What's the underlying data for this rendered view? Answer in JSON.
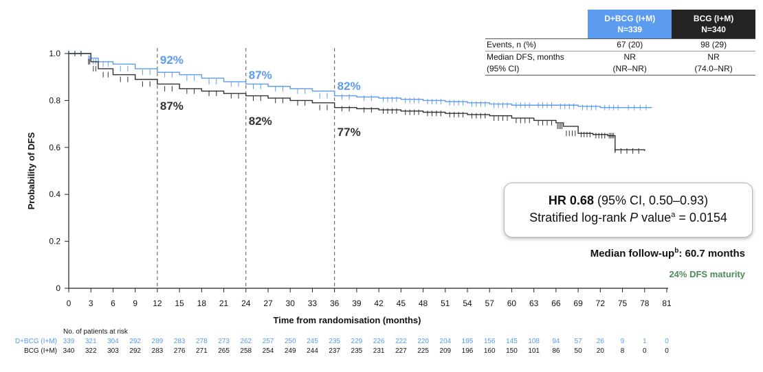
{
  "chart_data": {
    "type": "line",
    "subtype": "kaplan-meier",
    "xlabel": "Time from randomisation (months)",
    "ylabel": "Probability of DFS",
    "xlim": [
      0,
      81
    ],
    "ylim": [
      0,
      1.0
    ],
    "x_ticks": [
      0,
      3,
      6,
      9,
      12,
      15,
      18,
      21,
      24,
      27,
      30,
      33,
      36,
      39,
      42,
      45,
      48,
      51,
      54,
      57,
      60,
      63,
      66,
      69,
      72,
      75,
      78,
      81
    ],
    "y_ticks": [
      {
        "value": 0,
        "label": "0"
      },
      {
        "value": 0.2,
        "label": "0.2"
      },
      {
        "value": 0.4,
        "label": "0.4"
      },
      {
        "value": 0.6,
        "label": "0.6"
      },
      {
        "value": 0.8,
        "label": "0.8"
      },
      {
        "value": 1.0,
        "label": "1.0"
      }
    ],
    "grid": false,
    "series": [
      {
        "name": "D+BCG (I+M)",
        "color": "#5b9bf0",
        "points": [
          [
            0,
            1.0
          ],
          [
            2.5,
            1.0
          ],
          [
            3,
            0.98
          ],
          [
            4,
            0.965
          ],
          [
            6,
            0.955
          ],
          [
            9,
            0.935
          ],
          [
            12,
            0.92
          ],
          [
            15,
            0.91
          ],
          [
            18,
            0.895
          ],
          [
            21,
            0.88
          ],
          [
            24,
            0.87
          ],
          [
            27,
            0.86
          ],
          [
            30,
            0.85
          ],
          [
            33,
            0.84
          ],
          [
            36,
            0.82
          ],
          [
            39,
            0.815
          ],
          [
            42,
            0.81
          ],
          [
            45,
            0.805
          ],
          [
            48,
            0.8
          ],
          [
            51,
            0.795
          ],
          [
            54,
            0.79
          ],
          [
            57,
            0.785
          ],
          [
            60,
            0.78
          ],
          [
            63,
            0.78
          ],
          [
            66,
            0.78
          ],
          [
            69,
            0.775
          ],
          [
            72,
            0.77
          ],
          [
            75,
            0.77
          ],
          [
            79,
            0.77
          ]
        ]
      },
      {
        "name": "BCG (I+M)",
        "color": "#303030",
        "points": [
          [
            0,
            1.0
          ],
          [
            2.5,
            1.0
          ],
          [
            3,
            0.965
          ],
          [
            4,
            0.935
          ],
          [
            6,
            0.91
          ],
          [
            9,
            0.89
          ],
          [
            12,
            0.87
          ],
          [
            15,
            0.85
          ],
          [
            18,
            0.84
          ],
          [
            21,
            0.83
          ],
          [
            24,
            0.82
          ],
          [
            27,
            0.81
          ],
          [
            30,
            0.8
          ],
          [
            33,
            0.79
          ],
          [
            36,
            0.77
          ],
          [
            39,
            0.765
          ],
          [
            42,
            0.76
          ],
          [
            45,
            0.755
          ],
          [
            48,
            0.75
          ],
          [
            51,
            0.745
          ],
          [
            54,
            0.74
          ],
          [
            57,
            0.735
          ],
          [
            60,
            0.725
          ],
          [
            63,
            0.715
          ],
          [
            66,
            0.705
          ],
          [
            67,
            0.69
          ],
          [
            69,
            0.66
          ],
          [
            71,
            0.655
          ],
          [
            73,
            0.65
          ],
          [
            74,
            0.65
          ],
          [
            74,
            0.59
          ],
          [
            78,
            0.585
          ]
        ]
      }
    ],
    "landmarks": [
      {
        "x": 12,
        "upper": "92%",
        "lower": "87%"
      },
      {
        "x": 24,
        "upper": "87%",
        "lower": "82%"
      },
      {
        "x": 36,
        "upper": "82%",
        "lower": "77%"
      }
    ],
    "risk_table": {
      "title": "No. of patients at risk",
      "rows": [
        {
          "label": "D+BCG (I+M)",
          "color": "#5b9bf0",
          "values": [
            "339",
            "321",
            "304",
            "292",
            "289",
            "283",
            "278",
            "273",
            "262",
            "257",
            "250",
            "245",
            "235",
            "229",
            "226",
            "222",
            "220",
            "204",
            "195",
            "156",
            "145",
            "108",
            "94",
            "57",
            "26",
            "9",
            "1",
            "0"
          ]
        },
        {
          "label": "BCG (I+M)",
          "color": "#111111",
          "values": [
            "340",
            "322",
            "303",
            "292",
            "283",
            "276",
            "271",
            "265",
            "258",
            "254",
            "249",
            "244",
            "237",
            "235",
            "231",
            "227",
            "225",
            "209",
            "196",
            "160",
            "150",
            "101",
            "86",
            "50",
            "20",
            "8",
            "0",
            "0"
          ]
        }
      ]
    }
  },
  "events_table": {
    "headers": [
      {
        "line1": "D+BCG (I+M)",
        "line2": "N=339",
        "color": "#5b9bf0"
      },
      {
        "line1": "BCG (I+M)",
        "line2": "N=340",
        "color": "#232323"
      }
    ],
    "rows": [
      {
        "label": "Events, n (%)",
        "values": [
          "67 (20)",
          "98 (29)"
        ]
      },
      {
        "label": "Median DFS, months",
        "values": [
          "NR",
          "NR"
        ]
      },
      {
        "label": "(95% CI)",
        "values": [
          "(NR–NR)",
          "(74.0–NR)"
        ]
      }
    ]
  },
  "hr_box": {
    "hr_label": "HR 0.68",
    "hr_ci": " (95% CI, 0.50–0.93)",
    "pval_prefix": "Stratified log-rank ",
    "pval_italic": "P",
    "pval_mid": " value",
    "pval_sup": "a",
    "pval_suffix": " = 0.0154"
  },
  "followup": {
    "prefix": "Median follow-up",
    "sup": "b",
    "suffix": ": 60.7 months"
  },
  "maturity": "24% DFS maturity"
}
